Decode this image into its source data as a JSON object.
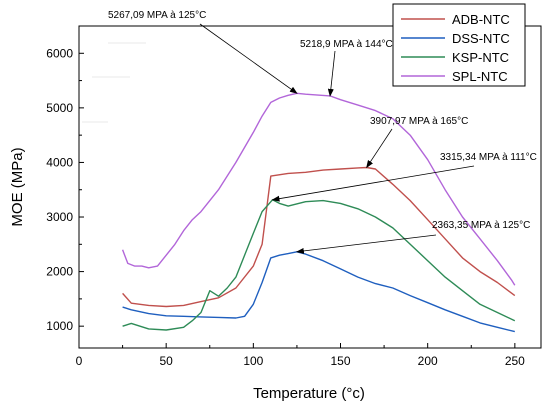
{
  "chart_data": {
    "type": "line",
    "xlabel": "Temperature (°c)",
    "ylabel": "MOE (MPa)",
    "xlim": [
      0,
      265
    ],
    "ylim": [
      600,
      6500
    ],
    "xticks": [
      0,
      50,
      100,
      150,
      200,
      250
    ],
    "yticks": [
      1000,
      2000,
      3000,
      4000,
      5000,
      6000
    ],
    "grid": false,
    "legend_position": "top-right",
    "series": [
      {
        "name": "ADB-NTC",
        "color": "#c0504d",
        "x": [
          25,
          30,
          40,
          50,
          60,
          70,
          80,
          90,
          100,
          105,
          110,
          120,
          130,
          140,
          150,
          160,
          165,
          170,
          180,
          190,
          200,
          210,
          220,
          230,
          240,
          250
        ],
        "y": [
          1600,
          1420,
          1380,
          1360,
          1380,
          1450,
          1520,
          1700,
          2100,
          2500,
          3750,
          3800,
          3820,
          3860,
          3880,
          3900,
          3908,
          3880,
          3600,
          3300,
          2950,
          2600,
          2250,
          2000,
          1800,
          1560
        ]
      },
      {
        "name": "DSS-NTC",
        "color": "#1f5fbf",
        "x": [
          25,
          30,
          40,
          50,
          60,
          70,
          80,
          90,
          95,
          100,
          105,
          110,
          115,
          120,
          125,
          130,
          140,
          150,
          160,
          170,
          180,
          190,
          200,
          210,
          220,
          230,
          240,
          250
        ],
        "y": [
          1350,
          1300,
          1230,
          1190,
          1180,
          1170,
          1160,
          1150,
          1180,
          1400,
          1800,
          2250,
          2300,
          2330,
          2363,
          2320,
          2200,
          2050,
          1900,
          1780,
          1700,
          1560,
          1430,
          1300,
          1180,
          1060,
          980,
          900
        ]
      },
      {
        "name": "KSP-NTC",
        "color": "#2e8b57",
        "x": [
          25,
          30,
          40,
          50,
          60,
          65,
          70,
          75,
          80,
          85,
          90,
          95,
          100,
          105,
          111,
          115,
          120,
          130,
          140,
          150,
          160,
          170,
          180,
          190,
          200,
          210,
          220,
          230,
          240,
          250
        ],
        "y": [
          1000,
          1050,
          950,
          930,
          980,
          1100,
          1250,
          1650,
          1550,
          1700,
          1900,
          2300,
          2700,
          3100,
          3315,
          3250,
          3200,
          3280,
          3300,
          3250,
          3150,
          3000,
          2800,
          2500,
          2200,
          1900,
          1650,
          1400,
          1250,
          1100
        ]
      },
      {
        "name": "SPL-NTC",
        "color": "#b266d9",
        "x": [
          25,
          28,
          32,
          36,
          40,
          45,
          50,
          55,
          60,
          65,
          70,
          80,
          90,
          100,
          105,
          110,
          115,
          120,
          125,
          130,
          135,
          144,
          150,
          160,
          170,
          180,
          190,
          200,
          210,
          220,
          230,
          240,
          248,
          250
        ],
        "y": [
          2400,
          2150,
          2100,
          2100,
          2070,
          2100,
          2300,
          2500,
          2750,
          2950,
          3100,
          3500,
          4000,
          4550,
          4850,
          5100,
          5180,
          5230,
          5267,
          5250,
          5240,
          5219,
          5150,
          5050,
          4950,
          4800,
          4500,
          4050,
          3500,
          3000,
          2600,
          2200,
          1850,
          1750
        ]
      }
    ],
    "annotations": [
      {
        "text": "5267,09 MPA à 125°C",
        "x": 125,
        "y": 5267
      },
      {
        "text": "5218,9 MPA à 144°C",
        "x": 144,
        "y": 5219
      },
      {
        "text": "3907,97 MPA à 165°C",
        "x": 165,
        "y": 3908
      },
      {
        "text": "3315,34 MPA à 111°C",
        "x": 111,
        "y": 3315
      },
      {
        "text": "2363,35 MPA à 125°C",
        "x": 125,
        "y": 2363
      }
    ]
  }
}
